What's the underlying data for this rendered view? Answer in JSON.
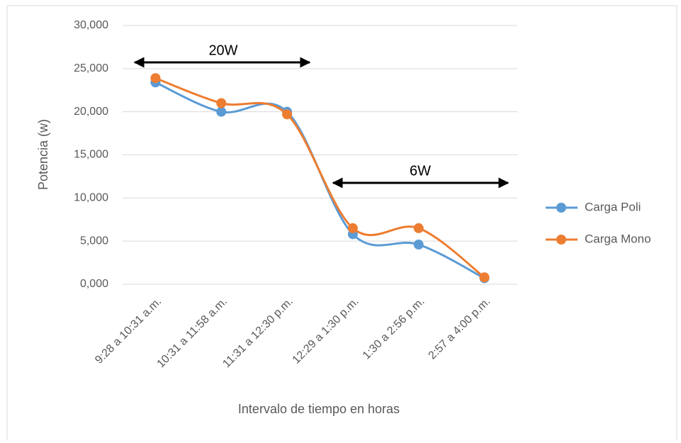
{
  "chart_data": {
    "type": "line",
    "x_label": "Intervalo de tiempo en horas",
    "y_label": "Potencia (w)",
    "categories": [
      "9:28 a 10:31 a.m.",
      "10:31 a 11:58 a.m.",
      "11:31 a 12:30 p.m.",
      "12:29 a 1:30 p.m.",
      "1:30 a 2:56 p.m.",
      "2:57 a 4:00 p.m."
    ],
    "series": [
      {
        "name": "Carga Poli",
        "color": "#5b9bd5",
        "values": [
          23.4,
          20.0,
          20.0,
          5.8,
          4.6,
          0.7
        ]
      },
      {
        "name": "Carga Mono",
        "color": "#ed7d31",
        "values": [
          23.9,
          21.0,
          19.7,
          6.5,
          6.5,
          0.8
        ]
      }
    ],
    "ylim": [
      0,
      30
    ],
    "yticks": [
      {
        "value": 0,
        "label": "0,000"
      },
      {
        "value": 5,
        "label": "5,000"
      },
      {
        "value": 10,
        "label": "10,000"
      },
      {
        "value": 15,
        "label": "15,000"
      },
      {
        "value": 20,
        "label": "20,000"
      },
      {
        "value": 25,
        "label": "25,000"
      },
      {
        "value": 30,
        "label": "30,000"
      }
    ],
    "grid": true,
    "smooth": true,
    "legend": "right",
    "annotations": [
      "20W",
      "6W"
    ]
  }
}
